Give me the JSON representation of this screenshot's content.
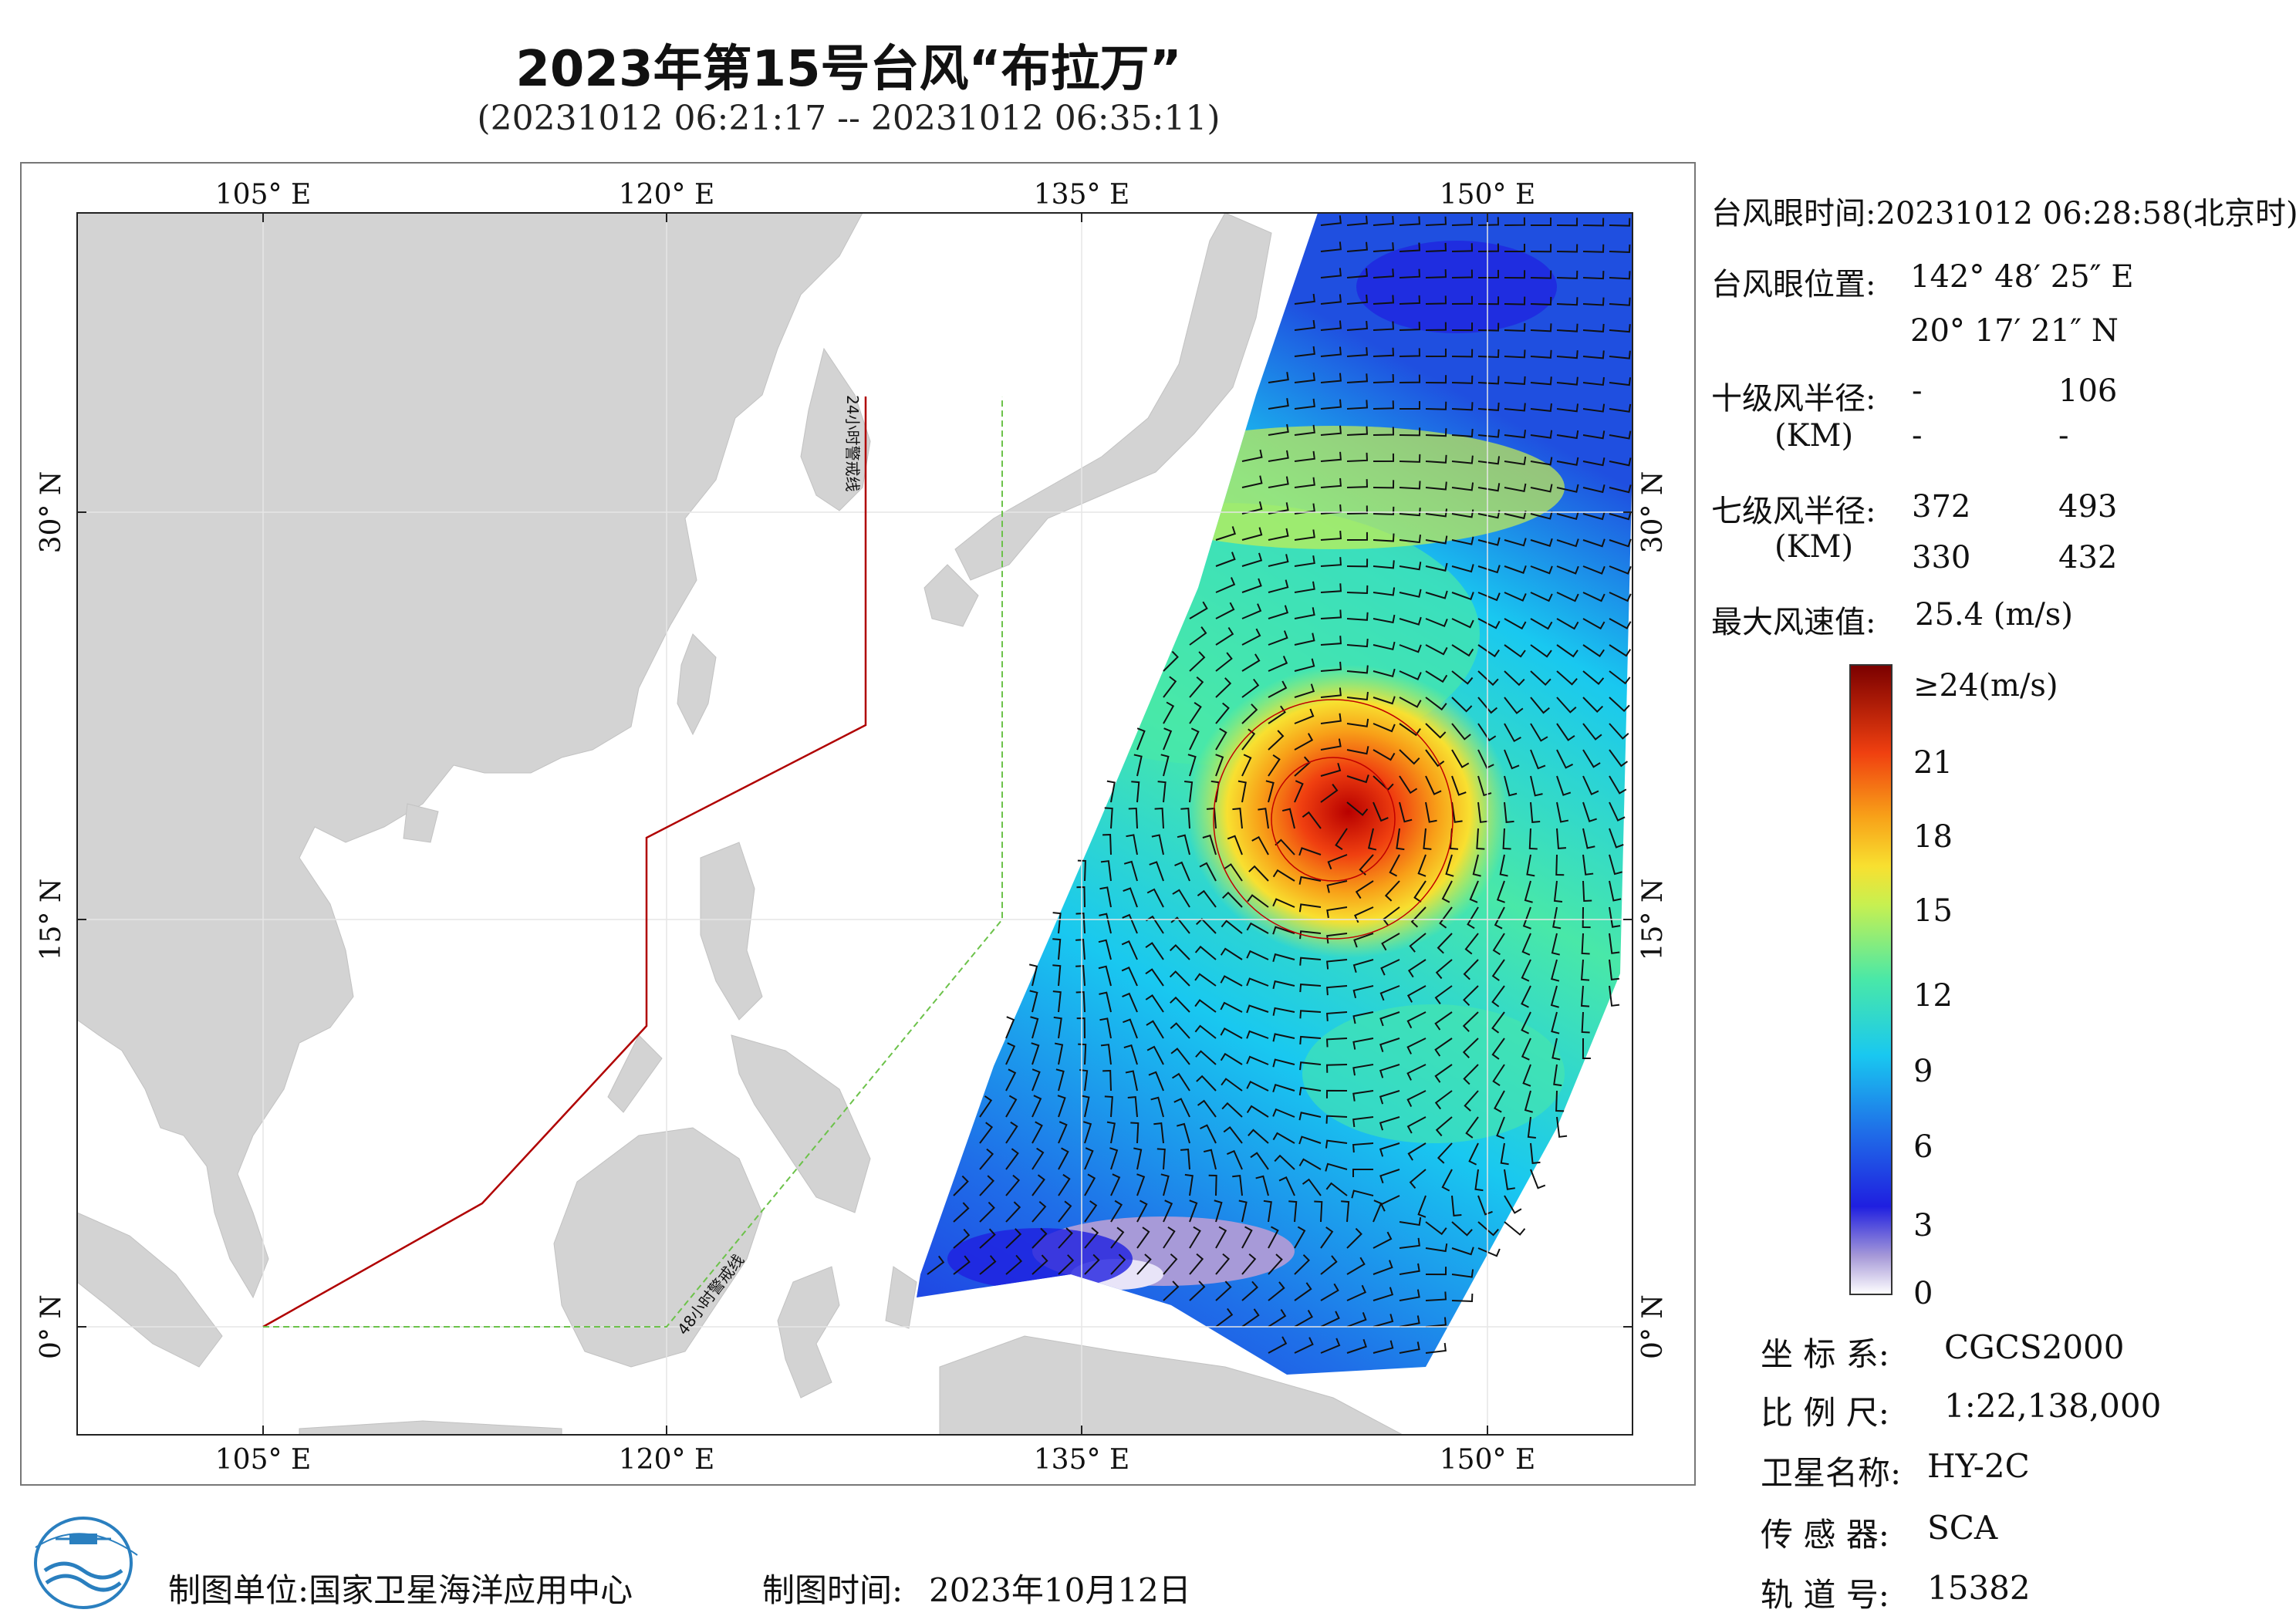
{
  "header": {
    "title": "2023年第15号台风“布拉万”",
    "time_range": "(20231012 06:21:17 -- 20231012 06:35:11)"
  },
  "map": {
    "lon_labels": [
      "105° E",
      "120° E",
      "135° E",
      "150° E"
    ],
    "lat_labels": [
      "30° N",
      "15° N",
      "0° N"
    ],
    "line_24h_label": "24小时警戒线",
    "line_48h_label": "48小时警戒线",
    "colors": {
      "land": "#d3d3d3",
      "ocean": "#ffffff",
      "line_24h": "#b00000",
      "line_48h": "#6cc24a",
      "wind_barb": "#111111"
    }
  },
  "typhoon_info": {
    "eye_time_label": "台风眼时间:",
    "eye_time_value": "20231012 06:28:58(北京时)",
    "eye_pos_label": "台风眼位置:",
    "eye_lon": "142° 48′ 25″ E",
    "eye_lat": "20° 17′ 21″ N",
    "r10_label": "十级风半径:",
    "r10_unit": "(KM)",
    "r10_values": [
      "-",
      "106",
      "-",
      "-"
    ],
    "r7_label": "七级风半径:",
    "r7_unit": "(KM)",
    "r7_values": [
      "372",
      "493",
      "330",
      "432"
    ],
    "max_wind_label": "最大风速值:",
    "max_wind_value": "25.4 (m/s)"
  },
  "colorbar": {
    "top_label": "≥24(m/s)",
    "ticks": [
      "21",
      "18",
      "15",
      "12",
      "9",
      "6",
      "3",
      "0"
    ],
    "tick_values": [
      21,
      18,
      15,
      12,
      9,
      6,
      3,
      0
    ],
    "max": 24,
    "colors": [
      "#ffffff",
      "#a79ad8",
      "#1f1fe0",
      "#1f6fe8",
      "#19c8f0",
      "#49e8a8",
      "#c8f050",
      "#f8e030",
      "#f8a018",
      "#f04010",
      "#b80000",
      "#7a0000"
    ]
  },
  "meta": {
    "crs_label": "坐 标 系:",
    "crs_value": "CGCS2000",
    "scale_label": "比 例 尺:",
    "scale_value": "1:22,138,000",
    "satellite_label": "卫星名称:",
    "satellite_value": "HY-2C",
    "sensor_label": "传 感 器:",
    "sensor_value": "SCA",
    "orbit_label": "轨 道 号:",
    "orbit_value": "15382"
  },
  "footer": {
    "producer_label": "制图单位:",
    "producer_value": "国家卫星海洋应用中心",
    "date_label": "制图时间:",
    "date_value": "2023年10月12日"
  }
}
